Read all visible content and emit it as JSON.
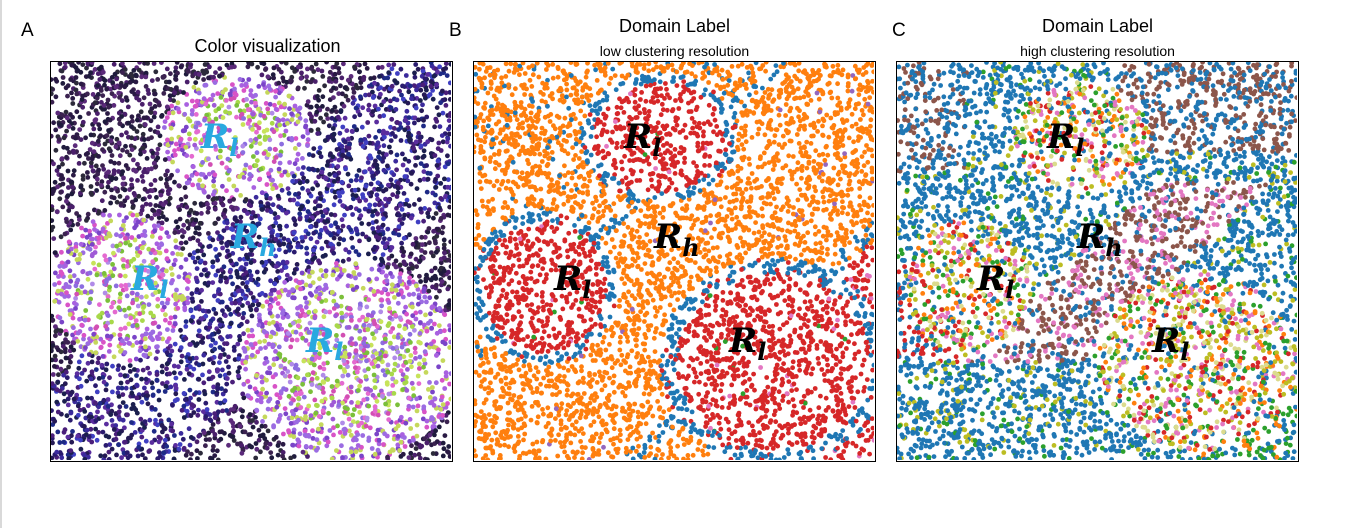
{
  "figure": {
    "panels": [
      {
        "letter": "A",
        "title": "Color visualization",
        "subtitle": ""
      },
      {
        "letter": "B",
        "title": "Domain Label",
        "subtitle": "low clustering resolution"
      },
      {
        "letter": "C",
        "title": "Domain Label",
        "subtitle": "high clustering resolution"
      }
    ],
    "region_labels": {
      "low": "R",
      "low_sub": "l",
      "high": "R",
      "high_sub": "h"
    }
  },
  "chart_data": [
    {
      "type": "scatter",
      "title": "Color visualization",
      "axes_visible": false,
      "grid": false,
      "encoding": "continuous RGB embedding colors (purple/blue in high-resolution band, magenta/green/violet in low-resolution regions)",
      "annotations": [
        {
          "text": "Rl",
          "region": "top-center"
        },
        {
          "text": "Rh",
          "region": "center"
        },
        {
          "text": "Rl",
          "region": "left-center"
        },
        {
          "text": "Rl",
          "region": "lower-right"
        }
      ],
      "label_color": "#29a9e0"
    },
    {
      "type": "scatter",
      "title": "Domain Label",
      "subtitle": "low clustering resolution",
      "axes_visible": false,
      "grid": false,
      "domain_colors": [
        "#ff7f0e",
        "#d62728",
        "#1f77b4",
        "#2ca02c",
        "#e377c2",
        "#9467bd"
      ],
      "annotations": [
        {
          "text": "Rl",
          "region": "top-center"
        },
        {
          "text": "Rh",
          "region": "center"
        },
        {
          "text": "Rl",
          "region": "left-center"
        },
        {
          "text": "Rl",
          "region": "lower-right"
        }
      ],
      "label_color": "#000000"
    },
    {
      "type": "scatter",
      "title": "Domain Label",
      "subtitle": "high clustering resolution",
      "axes_visible": false,
      "grid": false,
      "domain_colors": [
        "#1f77b4",
        "#8c564b",
        "#bcbd22",
        "#2ca02c",
        "#e377c2",
        "#d62728",
        "#ff7f0e",
        "#9467bd",
        "#17becf",
        "#dbdb8d"
      ],
      "annotations": [
        {
          "text": "Rl",
          "region": "top-center"
        },
        {
          "text": "Rh",
          "region": "center"
        },
        {
          "text": "Rl",
          "region": "left-center"
        },
        {
          "text": "Rl",
          "region": "lower-right"
        }
      ],
      "label_color": "#000000"
    }
  ]
}
